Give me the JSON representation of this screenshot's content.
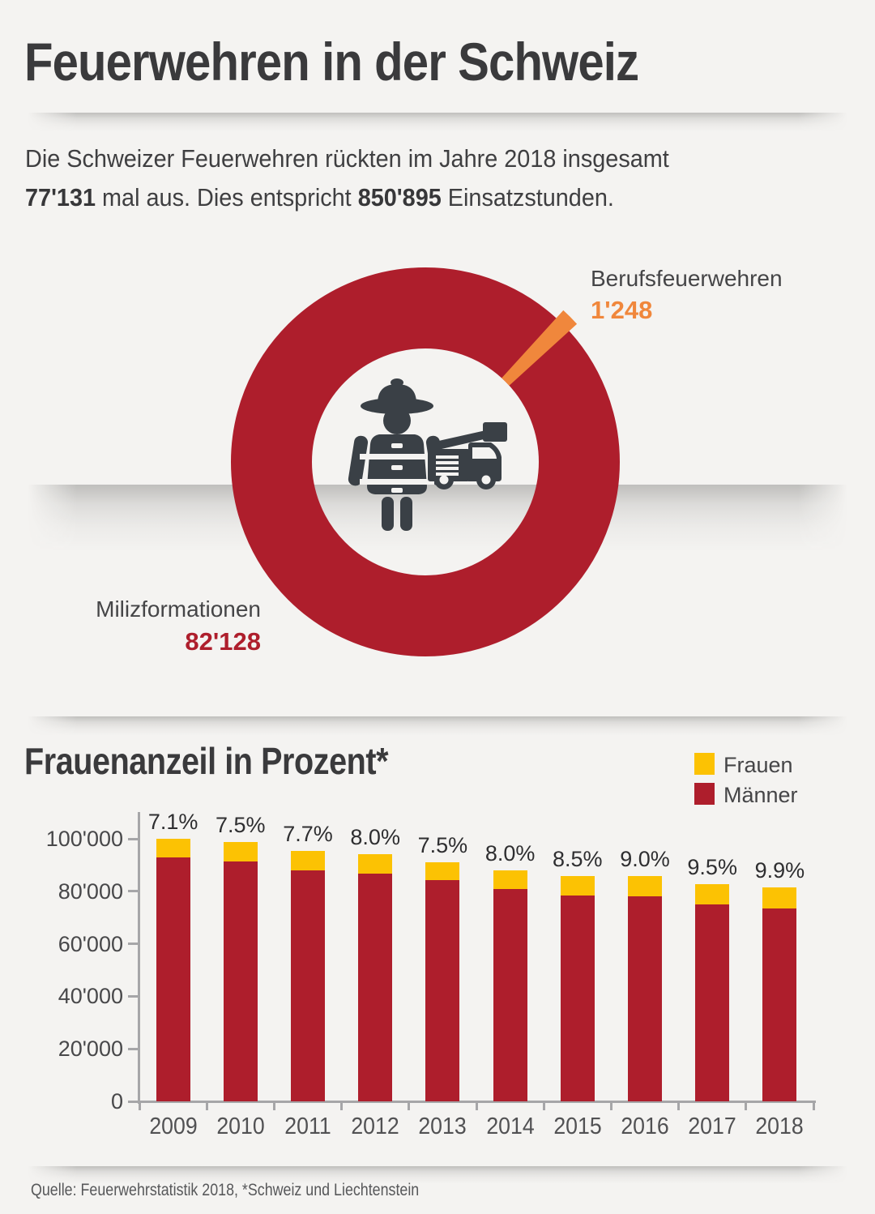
{
  "header": {
    "title": "Feuerwehren in der Schweiz"
  },
  "intro": {
    "line1": "Die Schweizer Feuerwehren rückten im Jahre 2018 insgesamt",
    "deployments": "77'131",
    "mid": " mal aus. Dies entspricht ",
    "hours": "850'895",
    "tail": " Einsatzstunden."
  },
  "donut": {
    "segments": [
      {
        "label": "Milizformationen",
        "value_display": "82'128",
        "color": "#ae1e2c"
      },
      {
        "label": "Berufsfeuerwehren",
        "value_display": "1'248",
        "color": "#f0873c"
      }
    ],
    "center_icons": [
      "firefighter-icon",
      "fire-truck-icon"
    ]
  },
  "bar_section": {
    "title": "Frauenanzeil in Prozent*",
    "legend": [
      "Frauen",
      "Männer"
    ]
  },
  "footer": {
    "source": "Quelle: Feuerwehrstatistik 2018, *Schweiz und Liechtenstein"
  },
  "colors": {
    "background": "#f4f3f1",
    "red": "#ae1e2c",
    "orange": "#f0873c",
    "yellow": "#fcc203",
    "icon_dark": "#3a4046",
    "text_dark": "#3a3a3c",
    "axis_gray": "#a6a6a8"
  },
  "chart_data": [
    {
      "type": "pie",
      "donut": true,
      "labels": [
        "Milizformationen",
        "Berufsfeuerwehren"
      ],
      "values": [
        82128,
        1248
      ],
      "value_displays": [
        "82'128",
        "1'248"
      ],
      "colors": [
        "#ae1e2c",
        "#f0873c"
      ],
      "legend_position": "callout-labels"
    },
    {
      "type": "bar",
      "stacked": true,
      "title": "Frauenanzeil in Prozent*",
      "categories": [
        "2009",
        "2010",
        "2011",
        "2012",
        "2013",
        "2014",
        "2015",
        "2016",
        "2017",
        "2018"
      ],
      "series": [
        {
          "name": "Frauen",
          "color": "#fcc203",
          "values": [
            7100,
            7400,
            7350,
            7500,
            6850,
            7050,
            7300,
            7700,
            7850,
            8050
          ]
        },
        {
          "name": "Männer",
          "color": "#ae1e2c",
          "values": [
            92900,
            91400,
            88050,
            86600,
            84150,
            80950,
            78500,
            78100,
            74850,
            73450
          ]
        }
      ],
      "totals": [
        100000,
        98800,
        95400,
        94100,
        91000,
        88000,
        85800,
        85800,
        82700,
        81500
      ],
      "bar_labels": [
        "7.1%",
        "7.5%",
        "7.7%",
        "8.0%",
        "7.5%",
        "8.0%",
        "8.5%",
        "9.0%",
        "9.5%",
        "9.9%"
      ],
      "ylabel": "",
      "xlabel": "",
      "ylim": [
        0,
        100000
      ],
      "ytick_labels": [
        "0",
        "20'000",
        "40'000",
        "60'000",
        "80'000",
        "100'000"
      ],
      "ytick_values": [
        0,
        20000,
        40000,
        60000,
        80000,
        100000
      ],
      "grid": false,
      "legend_position": "top-right"
    }
  ]
}
